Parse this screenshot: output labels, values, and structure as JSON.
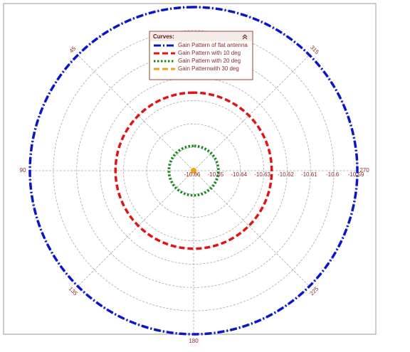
{
  "chart_data": {
    "type": "polar",
    "legend_title": "Curves:",
    "theta": [
      0,
      45,
      90,
      135,
      180,
      225,
      270,
      315,
      360
    ],
    "rlim": [
      -10.66,
      -10.59
    ],
    "rticks": [
      -10.66,
      -10.65,
      -10.64,
      -10.63,
      -10.62,
      -10.61,
      -10.6,
      -10.59
    ],
    "thetaticks": [
      45,
      90,
      135,
      180,
      225,
      270,
      315
    ],
    "grid": true,
    "series": [
      {
        "name": "Gain Pattern of flat antenna",
        "color": "#0a14c8",
        "dash": "dashdot",
        "values": [
          -10.59,
          -10.59,
          -10.59,
          -10.59,
          -10.59,
          -10.59,
          -10.59,
          -10.59,
          -10.59
        ]
      },
      {
        "name": "Gain Pattern with 10 deg",
        "color": "#e01414",
        "dash": "dashed",
        "values": [
          -10.6266,
          -10.6266,
          -10.6266,
          -10.6266,
          -10.6266,
          -10.6266,
          -10.6266,
          -10.6266,
          -10.6266
        ]
      },
      {
        "name": "Gain Pattern with 20 deg",
        "color": "#138a13",
        "dash": "dotted",
        "values": [
          -10.6494,
          -10.6494,
          -10.6494,
          -10.6494,
          -10.6494,
          -10.6494,
          -10.6494,
          -10.6494,
          -10.6494
        ]
      },
      {
        "name": "Gain Patternwith 30 deg",
        "color": "#f0a010",
        "dash": "dashed",
        "values": [
          -10.66,
          -10.66,
          -10.66,
          -10.66,
          -10.66,
          -10.66,
          -10.66,
          -10.66,
          -10.66
        ]
      }
    ]
  }
}
